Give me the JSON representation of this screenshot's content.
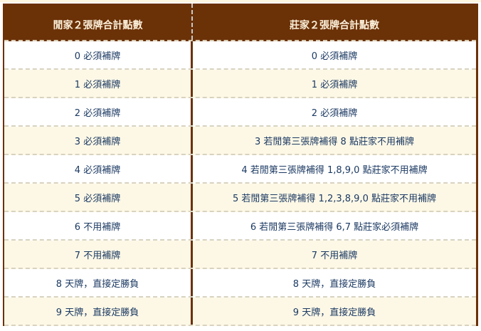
{
  "headers": {
    "player": "閒家２張牌合計點數",
    "banker": "莊家２張牌合計點數"
  },
  "rows": [
    {
      "player": "0 必須補牌",
      "banker": "0 必須補牌"
    },
    {
      "player": "1 必須補牌",
      "banker": "1 必須補牌"
    },
    {
      "player": "2 必須補牌",
      "banker": "2 必須補牌"
    },
    {
      "player": "3 必須補牌",
      "banker": "3 若閒第三張牌補得 8 點莊家不用補牌"
    },
    {
      "player": "4 必須補牌",
      "banker": "4 若閒第三張牌補得 1,8,9,0 點莊家不用補牌"
    },
    {
      "player": "5 必須補牌",
      "banker": "5 若閒第三張牌補得 1,2,3,8,9,0 點莊家不用補牌"
    },
    {
      "player": "6 不用補牌",
      "banker": "6 若閒第三張牌補得 6,7 點莊家必須補牌"
    },
    {
      "player": "7 不用補牌",
      "banker": "7 不用補牌"
    },
    {
      "player": "8 天牌，直接定勝負",
      "banker": "8 天牌，直接定勝負"
    },
    {
      "player": "9 天牌，直接定勝負",
      "banker": "9 天牌，直接定勝負"
    }
  ],
  "colors": {
    "header_bg": "#6b3107",
    "header_text": "#fbefd9",
    "cell_text": "#1c3a63",
    "alt_row": "#fdf8e6"
  }
}
